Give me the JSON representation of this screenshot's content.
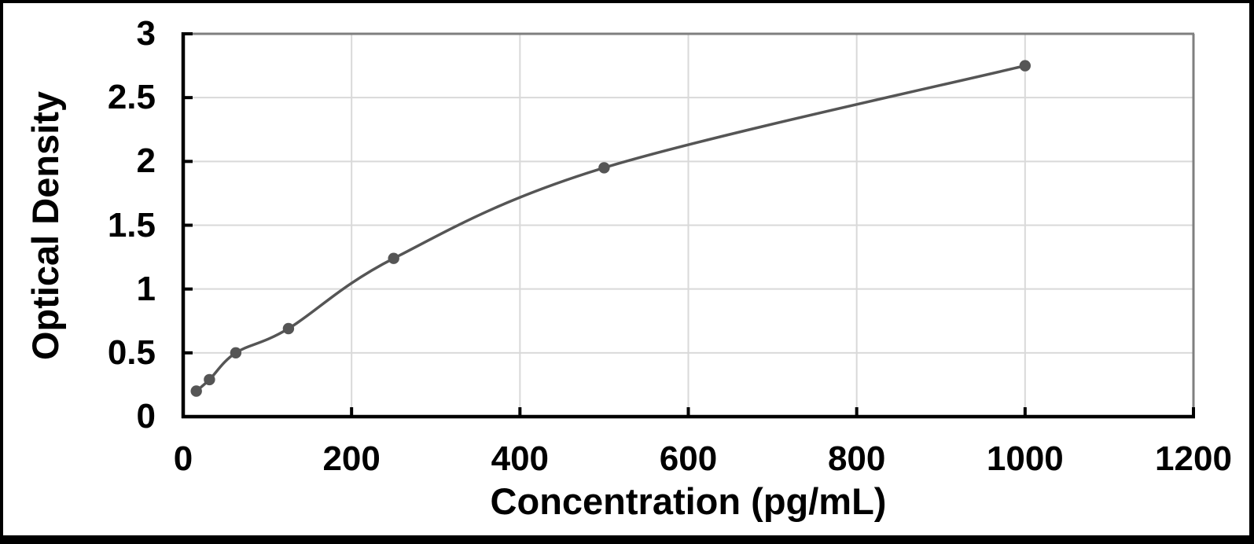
{
  "chart_data": {
    "type": "line",
    "series": [
      {
        "x": [
          15.6,
          31.2,
          62.5,
          125,
          250,
          500,
          1000
        ],
        "y": [
          0.2,
          0.29,
          0.5,
          0.69,
          1.24,
          1.95,
          2.75
        ]
      }
    ],
    "xlabel": "Concentration (pg/mL)",
    "ylabel": "Optical Density",
    "xlim": [
      0,
      1200
    ],
    "ylim": [
      0,
      3
    ],
    "xticks": [
      "0",
      "200",
      "400",
      "600",
      "800",
      "1000",
      "1200"
    ],
    "yticks": [
      "0",
      "0.5",
      "1",
      "1.5",
      "2",
      "2.5",
      "3"
    ],
    "grid": true,
    "legend": false,
    "marker": "circle",
    "colors": {
      "line": "#555555",
      "marker": "#555555",
      "grid": "#d9d9d9",
      "axis": "#000000",
      "plot_border": "#7f7f7f",
      "frame": "#000000",
      "background": "#ffffff",
      "text": "#000000"
    }
  }
}
